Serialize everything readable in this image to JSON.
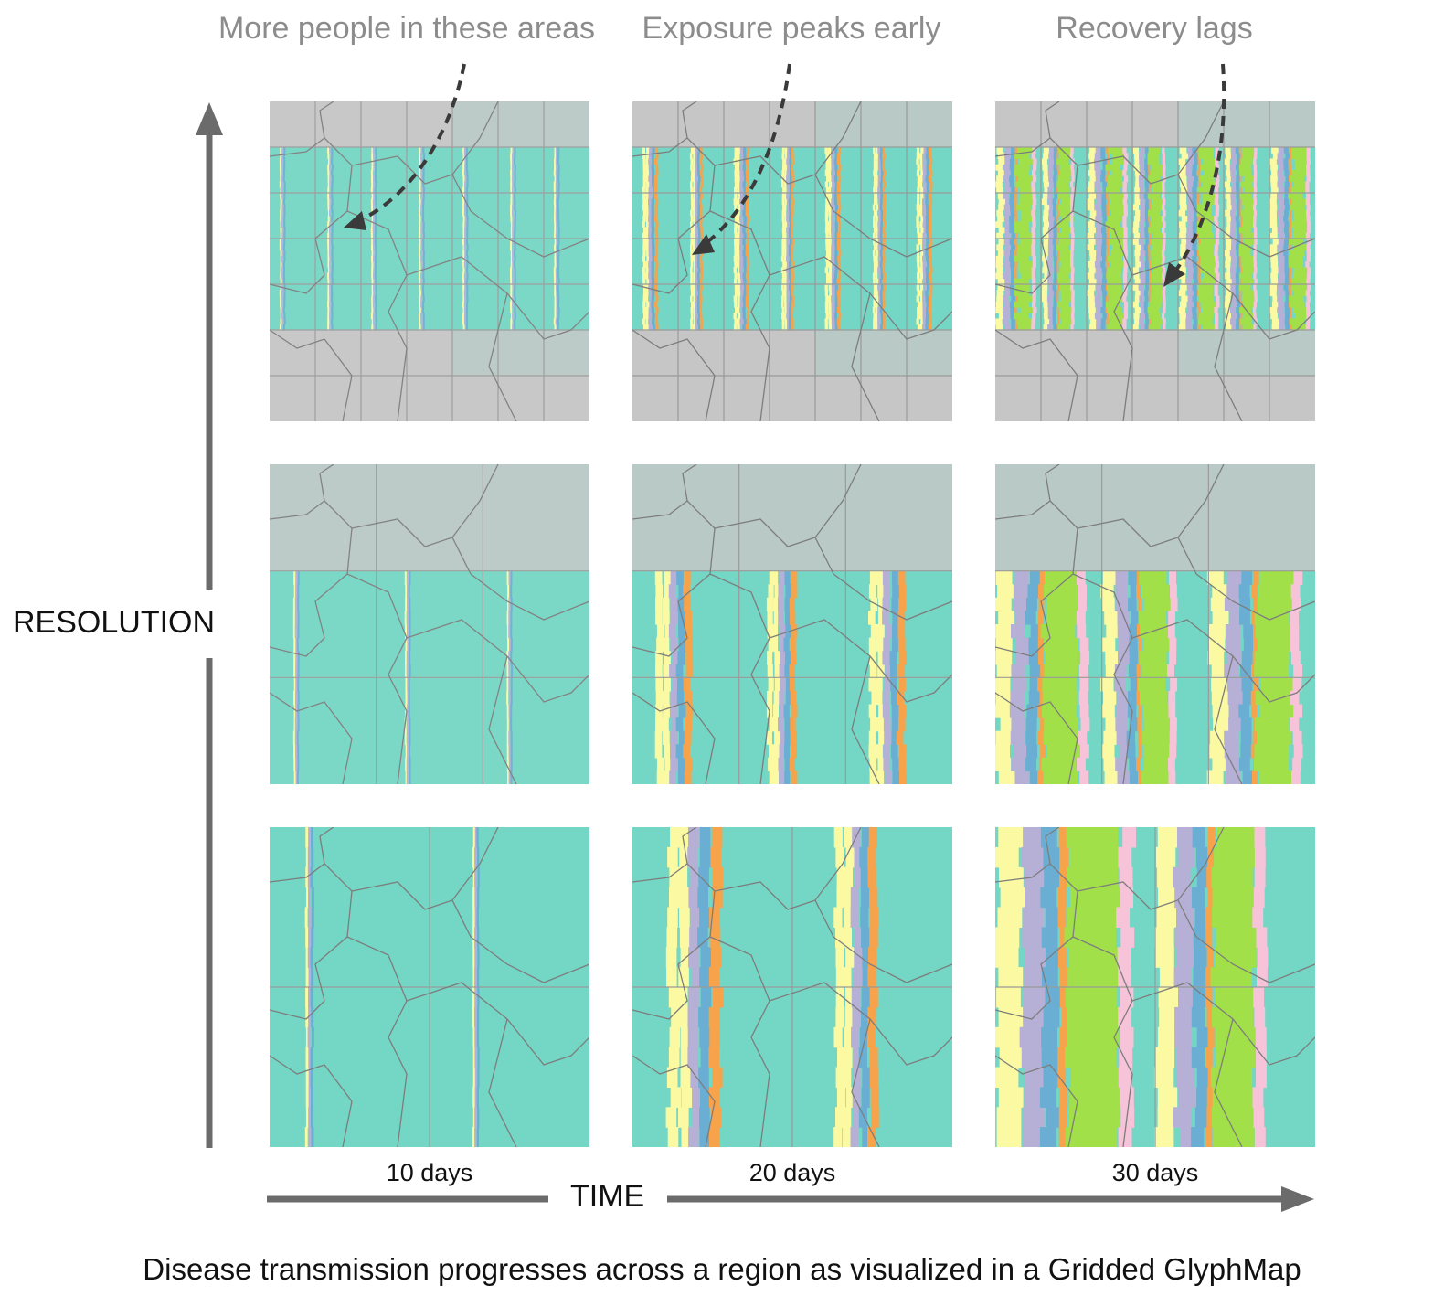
{
  "annotations": [
    "More people in these areas",
    "Exposure peaks early",
    "Recovery lags"
  ],
  "time_labels": [
    "10 days",
    "20 days",
    "30 days"
  ],
  "axis": {
    "x_label": "TIME",
    "y_label": "RESOLUTION"
  },
  "caption": "Disease transmission progresses across a region as visualized in a Gridded GlyphMap",
  "legend_colors": {
    "susceptible": "#74d6c4",
    "exposed": "#fbfaa2",
    "infected_a": "#b7b0d6",
    "infected_b": "#6aaed4",
    "infected_c": "#f7a34b",
    "recovered": "#a2e04a",
    "other": "#f6c3d8",
    "no_data": "#c6c6c6"
  }
}
